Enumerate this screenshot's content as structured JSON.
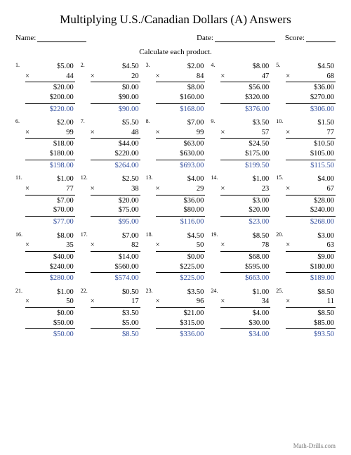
{
  "title": "Multiplying U.S./Canadian Dollars (A) Answers",
  "meta": {
    "name_label": "Name:",
    "date_label": "Date:",
    "score_label": "Score:"
  },
  "instruction": "Calculate each product.",
  "footer": "Math-Drills.com",
  "style": {
    "answer_color": "#334f9e",
    "line_widths": {
      "name": 70,
      "date": 86,
      "score": 42
    }
  },
  "problems": [
    {
      "n": "1.",
      "a": "$5.00",
      "b": "44",
      "p": [
        "$20.00",
        "$200.00"
      ],
      "ans": "$220.00"
    },
    {
      "n": "2.",
      "a": "$4.50",
      "b": "20",
      "p": [
        "$0.00",
        "$90.00"
      ],
      "ans": "$90.00"
    },
    {
      "n": "3.",
      "a": "$2.00",
      "b": "84",
      "p": [
        "$8.00",
        "$160.00"
      ],
      "ans": "$168.00"
    },
    {
      "n": "4.",
      "a": "$8.00",
      "b": "47",
      "p": [
        "$56.00",
        "$320.00"
      ],
      "ans": "$376.00"
    },
    {
      "n": "5.",
      "a": "$4.50",
      "b": "68",
      "p": [
        "$36.00",
        "$270.00"
      ],
      "ans": "$306.00"
    },
    {
      "n": "6.",
      "a": "$2.00",
      "b": "99",
      "p": [
        "$18.00",
        "$180.00"
      ],
      "ans": "$198.00"
    },
    {
      "n": "7.",
      "a": "$5.50",
      "b": "48",
      "p": [
        "$44.00",
        "$220.00"
      ],
      "ans": "$264.00"
    },
    {
      "n": "8.",
      "a": "$7.00",
      "b": "99",
      "p": [
        "$63.00",
        "$630.00"
      ],
      "ans": "$693.00"
    },
    {
      "n": "9.",
      "a": "$3.50",
      "b": "57",
      "p": [
        "$24.50",
        "$175.00"
      ],
      "ans": "$199.50"
    },
    {
      "n": "10.",
      "a": "$1.50",
      "b": "77",
      "p": [
        "$10.50",
        "$105.00"
      ],
      "ans": "$115.50"
    },
    {
      "n": "11.",
      "a": "$1.00",
      "b": "77",
      "p": [
        "$7.00",
        "$70.00"
      ],
      "ans": "$77.00"
    },
    {
      "n": "12.",
      "a": "$2.50",
      "b": "38",
      "p": [
        "$20.00",
        "$75.00"
      ],
      "ans": "$95.00"
    },
    {
      "n": "13.",
      "a": "$4.00",
      "b": "29",
      "p": [
        "$36.00",
        "$80.00"
      ],
      "ans": "$116.00"
    },
    {
      "n": "14.",
      "a": "$1.00",
      "b": "23",
      "p": [
        "$3.00",
        "$20.00"
      ],
      "ans": "$23.00"
    },
    {
      "n": "15.",
      "a": "$4.00",
      "b": "67",
      "p": [
        "$28.00",
        "$240.00"
      ],
      "ans": "$268.00"
    },
    {
      "n": "16.",
      "a": "$8.00",
      "b": "35",
      "p": [
        "$40.00",
        "$240.00"
      ],
      "ans": "$280.00"
    },
    {
      "n": "17.",
      "a": "$7.00",
      "b": "82",
      "p": [
        "$14.00",
        "$560.00"
      ],
      "ans": "$574.00"
    },
    {
      "n": "18.",
      "a": "$4.50",
      "b": "50",
      "p": [
        "$0.00",
        "$225.00"
      ],
      "ans": "$225.00"
    },
    {
      "n": "19.",
      "a": "$8.50",
      "b": "78",
      "p": [
        "$68.00",
        "$595.00"
      ],
      "ans": "$663.00"
    },
    {
      "n": "20.",
      "a": "$3.00",
      "b": "63",
      "p": [
        "$9.00",
        "$180.00"
      ],
      "ans": "$189.00"
    },
    {
      "n": "21.",
      "a": "$1.00",
      "b": "50",
      "p": [
        "$0.00",
        "$50.00"
      ],
      "ans": "$50.00"
    },
    {
      "n": "22.",
      "a": "$0.50",
      "b": "17",
      "p": [
        "$3.50",
        "$5.00"
      ],
      "ans": "$8.50"
    },
    {
      "n": "23.",
      "a": "$3.50",
      "b": "96",
      "p": [
        "$21.00",
        "$315.00"
      ],
      "ans": "$336.00"
    },
    {
      "n": "24.",
      "a": "$1.00",
      "b": "34",
      "p": [
        "$4.00",
        "$30.00"
      ],
      "ans": "$34.00"
    },
    {
      "n": "25.",
      "a": "$8.50",
      "b": "11",
      "p": [
        "$8.50",
        "$85.00"
      ],
      "ans": "$93.50"
    }
  ]
}
